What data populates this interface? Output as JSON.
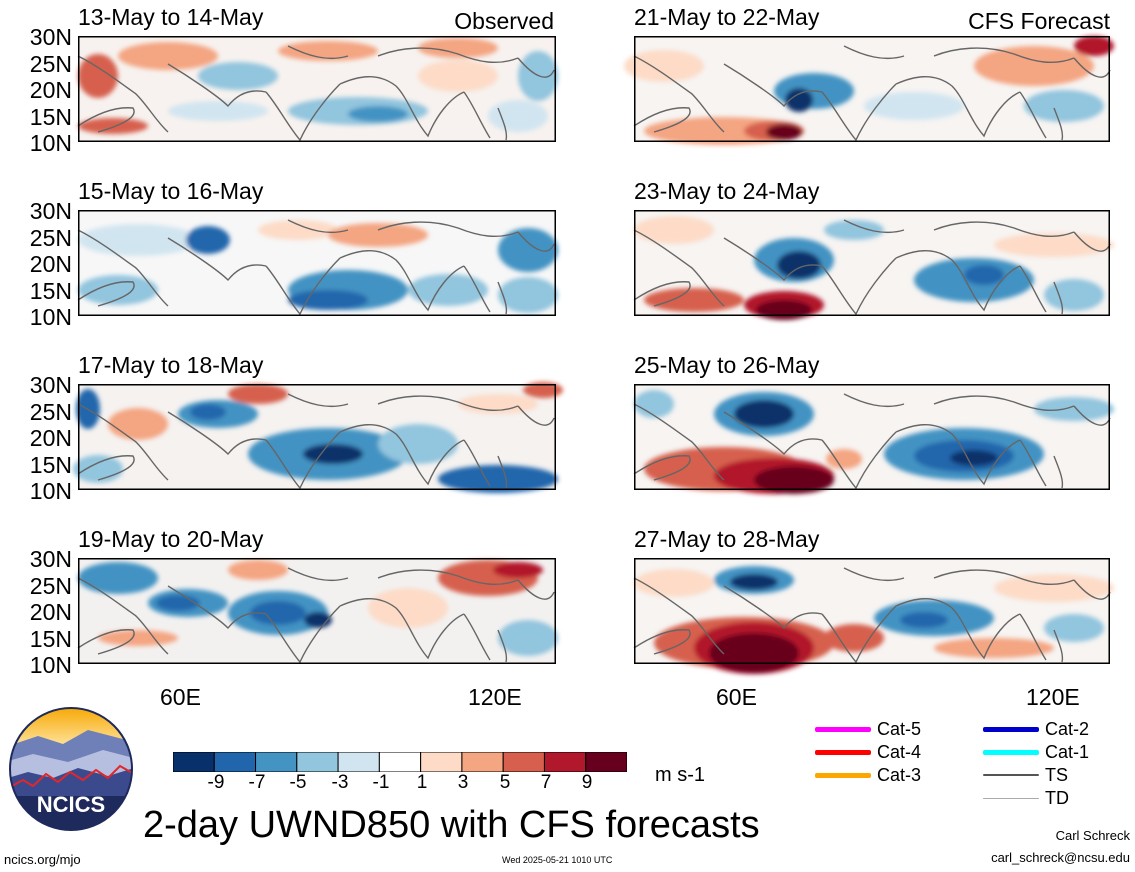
{
  "header": {
    "observed_label": "Observed",
    "forecast_label": "CFS Forecast"
  },
  "panels": [
    {
      "id": "p1",
      "title": "13-May to 14-May"
    },
    {
      "id": "p2",
      "title": "15-May to 16-May"
    },
    {
      "id": "p3",
      "title": "17-May to 18-May"
    },
    {
      "id": "p4",
      "title": "19-May to 20-May"
    },
    {
      "id": "p5",
      "title": "21-May to 22-May"
    },
    {
      "id": "p6",
      "title": "23-May to 24-May"
    },
    {
      "id": "p7",
      "title": "25-May to 26-May"
    },
    {
      "id": "p8",
      "title": "27-May to 28-May"
    }
  ],
  "axes": {
    "lat_labels": [
      "30N",
      "25N",
      "20N",
      "15N",
      "10N"
    ],
    "lon_labels": [
      "60E",
      "120E"
    ]
  },
  "colorbar": {
    "ticks": [
      "-9",
      "-7",
      "-5",
      "-3",
      "-1",
      "1",
      "3",
      "5",
      "7",
      "9"
    ],
    "colors": [
      "#08306b",
      "#2166ac",
      "#4393c3",
      "#92c5de",
      "#d1e5f0",
      "#ffffff",
      "#fddbc7",
      "#f4a582",
      "#d6604d",
      "#b2182b",
      "#67001f"
    ],
    "units": "m s-1"
  },
  "legend": [
    {
      "label": "Cat-5",
      "color": "#ff00ff"
    },
    {
      "label": "Cat-4",
      "color": "#ff0000"
    },
    {
      "label": "Cat-3",
      "color": "#ffa500"
    },
    {
      "label": "Cat-2",
      "color": "#0000cd"
    },
    {
      "label": "Cat-1",
      "color": "#00ffff"
    },
    {
      "label": "TS",
      "color": "#555555"
    },
    {
      "label": "TD",
      "color": "#aaaaaa"
    }
  ],
  "logo": {
    "text": "NCICS"
  },
  "footer": {
    "title": "2-day UWND850 with CFS forecasts",
    "url": "ncics.org/mjo",
    "timestamp": "Wed 2025-05-21 1010 UTC",
    "author": "Carl Schreck",
    "email": "carl_schreck@ncsu.edu"
  }
}
